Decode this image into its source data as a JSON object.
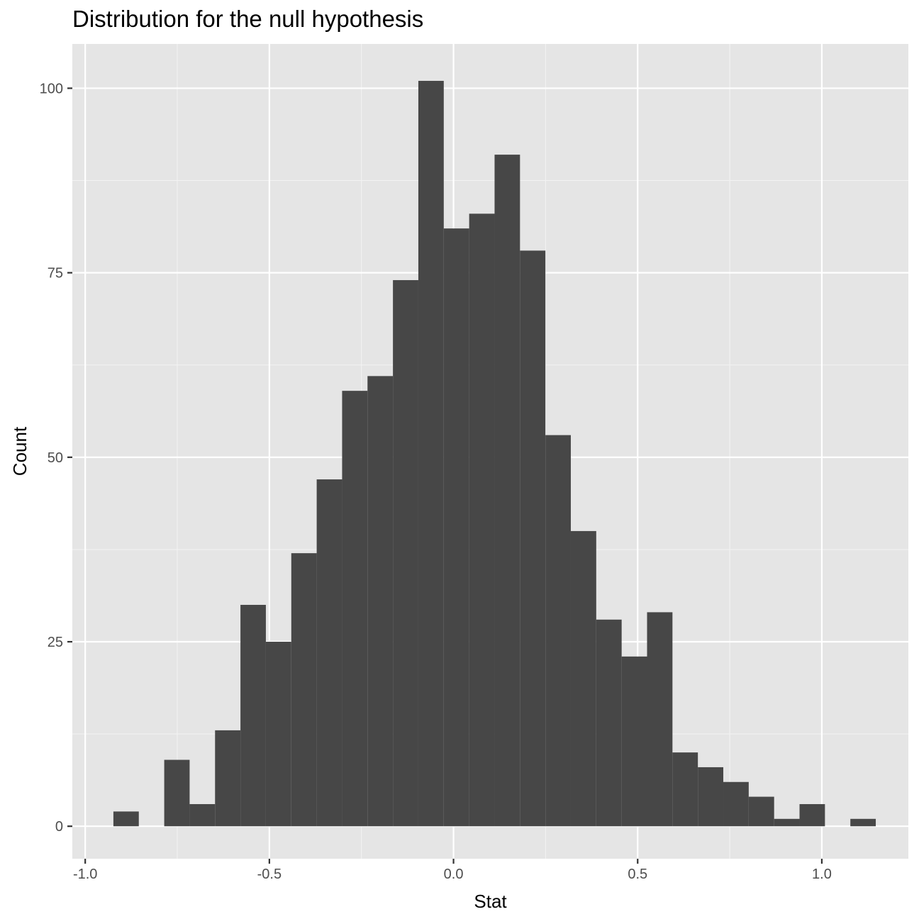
{
  "chart_data": {
    "type": "bar",
    "title": "Distribution for the null hypothesis",
    "xlabel": "Stat",
    "ylabel": "Count",
    "bin_width": 0.069,
    "bins": [
      {
        "x": -0.889,
        "count": 2
      },
      {
        "x": -0.82,
        "count": 0
      },
      {
        "x": -0.751,
        "count": 9
      },
      {
        "x": -0.682,
        "count": 3
      },
      {
        "x": -0.613,
        "count": 13
      },
      {
        "x": -0.544,
        "count": 30
      },
      {
        "x": -0.475,
        "count": 25
      },
      {
        "x": -0.406,
        "count": 37
      },
      {
        "x": -0.337,
        "count": 47
      },
      {
        "x": -0.268,
        "count": 59
      },
      {
        "x": -0.199,
        "count": 61
      },
      {
        "x": -0.13,
        "count": 74
      },
      {
        "x": -0.061,
        "count": 101
      },
      {
        "x": 0.008,
        "count": 81
      },
      {
        "x": 0.077,
        "count": 83
      },
      {
        "x": 0.146,
        "count": 91
      },
      {
        "x": 0.215,
        "count": 78
      },
      {
        "x": 0.284,
        "count": 53
      },
      {
        "x": 0.353,
        "count": 40
      },
      {
        "x": 0.422,
        "count": 28
      },
      {
        "x": 0.491,
        "count": 23
      },
      {
        "x": 0.56,
        "count": 29
      },
      {
        "x": 0.629,
        "count": 10
      },
      {
        "x": 0.698,
        "count": 8
      },
      {
        "x": 0.767,
        "count": 6
      },
      {
        "x": 0.836,
        "count": 4
      },
      {
        "x": 0.905,
        "count": 1
      },
      {
        "x": 0.974,
        "count": 3
      },
      {
        "x": 1.043,
        "count": 0
      },
      {
        "x": 1.112,
        "count": 1
      }
    ],
    "xlim": [
      -1.035,
      1.235
    ],
    "ylim": [
      -4.4,
      106
    ],
    "x_ticks": [
      {
        "value": -1.0,
        "label": "-1.0"
      },
      {
        "value": -0.5,
        "label": "-0.5"
      },
      {
        "value": 0.0,
        "label": "0.0"
      },
      {
        "value": 0.5,
        "label": "0.5"
      },
      {
        "value": 1.0,
        "label": "1.0"
      }
    ],
    "y_ticks": [
      {
        "value": 0,
        "label": "0"
      },
      {
        "value": 25,
        "label": "25"
      },
      {
        "value": 50,
        "label": "50"
      },
      {
        "value": 75,
        "label": "75"
      },
      {
        "value": 100,
        "label": "100"
      }
    ],
    "grid": true,
    "legend": "none",
    "colors": {
      "panel_background": "#e5e5e5",
      "grid_major": "#ffffff",
      "grid_minor": "#f2f2f2",
      "bar_fill": "#474747",
      "tick_text": "#4d4d4d",
      "axis_tick": "#333333"
    }
  }
}
